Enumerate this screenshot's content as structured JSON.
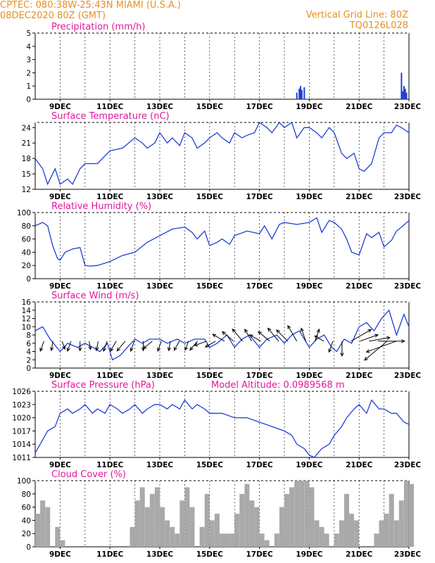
{
  "header": {
    "left_line1": "CPTEC:   080:38W-25:43N   MIAMI (U.S.A.)",
    "left_line2": "08DEC2020 80Z (GMT)",
    "right_line1": "Vertical Grid Line: 80Z",
    "right_line2": "TQ0126L028",
    "model_altitude": "Model Altitude: 0.0989568 m"
  },
  "colors": {
    "header": "#e8901c",
    "title": "#e0179a",
    "line": "#1f3fd6",
    "cloud": "#a9a9a9",
    "wind": "#000000"
  },
  "x_tick_labels": [
    "9DEC",
    "11DEC",
    "13DEC",
    "15DEC",
    "17DEC",
    "19DEC",
    "21DEC",
    "23DEC"
  ],
  "chart_data": [
    {
      "type": "bar",
      "title": "Precipitation (mm/h)",
      "ylim": [
        0,
        5
      ],
      "yticks": [
        0,
        1,
        2,
        3,
        4,
        5
      ],
      "x": [
        18.5,
        18.6,
        18.65,
        18.7,
        18.8,
        22.7,
        22.75,
        22.8,
        22.85,
        22.9
      ],
      "values": [
        0.5,
        0.8,
        1.0,
        0.7,
        0.9,
        2.0,
        0.6,
        1.0,
        0.8,
        0.5
      ]
    },
    {
      "type": "line",
      "title": "Surface Temperature (nC)",
      "ylim": [
        12,
        25
      ],
      "yticks": [
        12,
        15,
        18,
        21,
        24
      ],
      "x": [
        8.0,
        8.3,
        8.5,
        8.8,
        9.0,
        9.3,
        9.5,
        9.8,
        10.0,
        10.5,
        11.0,
        11.5,
        12.0,
        12.3,
        12.5,
        12.8,
        13.0,
        13.3,
        13.5,
        13.8,
        14.0,
        14.3,
        14.5,
        14.8,
        15.0,
        15.3,
        15.5,
        15.8,
        16.0,
        16.3,
        16.5,
        16.8,
        17.0,
        17.3,
        17.5,
        17.8,
        18.0,
        18.3,
        18.5,
        18.8,
        19.0,
        19.3,
        19.5,
        19.8,
        20.0,
        20.3,
        20.5,
        20.8,
        21.0,
        21.2,
        21.5,
        21.8,
        22.0,
        22.3,
        22.5,
        22.7,
        23.0
      ],
      "values": [
        18,
        16,
        13,
        16,
        13,
        14,
        13,
        16,
        17,
        17,
        19.5,
        20,
        22,
        21,
        20,
        21,
        23,
        21,
        22,
        20.5,
        23,
        22,
        20,
        21,
        22,
        23,
        22,
        21,
        23,
        22,
        22.5,
        23,
        25,
        24,
        23,
        25,
        24,
        25,
        22,
        24,
        24,
        23,
        22,
        24,
        23,
        19,
        18,
        19,
        16,
        15.5,
        17,
        22,
        23,
        23,
        24.5,
        24,
        23
      ]
    },
    {
      "type": "line",
      "title": "Relative Humidity (%)",
      "ylim": [
        0,
        100
      ],
      "yticks": [
        0,
        20,
        40,
        60,
        80,
        100
      ],
      "x": [
        8.0,
        8.3,
        8.5,
        8.7,
        8.9,
        9.0,
        9.2,
        9.5,
        9.8,
        10.0,
        10.2,
        10.5,
        11.0,
        11.5,
        12.0,
        12.5,
        13.0,
        13.5,
        14.0,
        14.3,
        14.5,
        14.8,
        15.0,
        15.3,
        15.5,
        15.8,
        16.0,
        16.5,
        17.0,
        17.2,
        17.5,
        17.8,
        18.0,
        18.5,
        19.0,
        19.3,
        19.5,
        19.8,
        20.0,
        20.3,
        20.5,
        20.7,
        21.0,
        21.3,
        21.5,
        21.8,
        22.0,
        22.3,
        22.5,
        22.7,
        23.0
      ],
      "values": [
        80,
        85,
        80,
        50,
        30,
        28,
        40,
        45,
        47,
        20,
        19,
        20,
        26,
        35,
        40,
        55,
        65,
        75,
        78,
        70,
        60,
        72,
        50,
        55,
        60,
        52,
        65,
        72,
        68,
        80,
        60,
        82,
        85,
        82,
        85,
        92,
        70,
        88,
        85,
        75,
        60,
        40,
        36,
        68,
        62,
        70,
        48,
        58,
        72,
        78,
        88
      ]
    },
    {
      "type": "line",
      "title": "Surface Wind (m/s)",
      "ylim": [
        0,
        16
      ],
      "yticks": [
        0,
        2,
        4,
        6,
        8,
        10,
        12,
        14,
        16
      ],
      "x": [
        8.0,
        8.3,
        8.6,
        9.0,
        9.3,
        9.7,
        10.0,
        10.3,
        10.6,
        10.9,
        11.1,
        11.4,
        11.7,
        12.0,
        12.3,
        12.6,
        13.0,
        13.3,
        13.7,
        14.0,
        14.4,
        14.8,
        15.0,
        15.3,
        15.7,
        16.0,
        16.3,
        16.6,
        17.0,
        17.3,
        17.7,
        18.0,
        18.3,
        18.6,
        19.0,
        19.3,
        19.6,
        19.9,
        20.1,
        20.4,
        20.7,
        21.0,
        21.3,
        21.6,
        21.9,
        22.2,
        22.5,
        22.8,
        23.0
      ],
      "values": [
        9,
        10,
        7,
        4,
        6,
        5,
        6,
        5,
        4,
        6,
        2,
        3,
        5,
        7,
        6,
        7,
        7,
        6,
        7,
        6,
        7,
        7,
        5,
        6,
        8,
        5,
        7,
        8,
        5,
        7,
        8,
        6,
        8,
        9,
        5,
        7,
        8,
        5,
        4,
        7,
        6,
        10,
        11,
        9,
        12,
        14,
        8,
        13,
        10
      ],
      "arrows_dir": [
        200,
        190,
        160,
        200,
        180,
        170,
        190,
        200,
        210,
        220,
        200,
        180,
        230,
        200,
        190,
        210,
        200,
        220,
        250,
        240,
        300,
        310,
        320,
        330,
        300,
        310,
        320,
        315,
        330,
        340,
        20,
        300,
        200,
        180,
        60,
        70,
        80,
        90,
        230,
        250
      ],
      "arrows_len": [
        10,
        9,
        8,
        10,
        9,
        8,
        9,
        10,
        11,
        12,
        10,
        9,
        11,
        10,
        9,
        10,
        9,
        11,
        12,
        11,
        13,
        14,
        15,
        13,
        12,
        14,
        16,
        15,
        17,
        13,
        12,
        10,
        11,
        14,
        22,
        18,
        20,
        25,
        28,
        30
      ]
    },
    {
      "type": "line",
      "title": "Surface Pressure (hPa)",
      "ylim": [
        1011,
        1026
      ],
      "yticks": [
        1011,
        1014,
        1017,
        1020,
        1023,
        1026
      ],
      "x": [
        8.0,
        8.3,
        8.5,
        8.8,
        9.0,
        9.3,
        9.5,
        9.8,
        10.0,
        10.3,
        10.5,
        10.8,
        11.0,
        11.3,
        11.5,
        11.8,
        12.0,
        12.3,
        12.5,
        12.8,
        13.0,
        13.3,
        13.5,
        13.8,
        14.0,
        14.3,
        14.5,
        14.8,
        15.0,
        15.5,
        16.0,
        16.5,
        17.0,
        17.5,
        18.0,
        18.3,
        18.5,
        18.8,
        19.0,
        19.2,
        19.5,
        19.8,
        20.0,
        20.3,
        20.5,
        20.8,
        21.0,
        21.3,
        21.5,
        21.8,
        22.0,
        22.3,
        22.5,
        22.8,
        23.0
      ],
      "values": [
        1012,
        1015,
        1017,
        1018,
        1021,
        1022,
        1021,
        1022,
        1023,
        1021,
        1022,
        1021,
        1023,
        1022,
        1021,
        1022,
        1023,
        1021,
        1022,
        1023,
        1023,
        1022,
        1023,
        1022,
        1024,
        1022,
        1023,
        1022,
        1021,
        1021,
        1020,
        1020,
        1019,
        1018,
        1017,
        1016,
        1014,
        1013,
        1011.5,
        1011,
        1013,
        1014,
        1016,
        1018,
        1020,
        1022,
        1023,
        1021,
        1024,
        1022,
        1022,
        1021,
        1021,
        1019,
        1018.5
      ]
    },
    {
      "type": "bar",
      "title": "Cloud Cover (%)",
      "ylim": [
        0,
        100
      ],
      "yticks": [
        0,
        20,
        40,
        60,
        80,
        100
      ],
      "x": [
        8.0,
        8.2,
        8.4,
        8.6,
        8.8,
        9.0,
        9.2,
        9.4,
        9.6,
        9.8,
        10.0,
        10.2,
        10.4,
        10.6,
        10.8,
        11.0,
        11.2,
        11.4,
        11.6,
        11.8,
        12.0,
        12.2,
        12.4,
        12.6,
        12.8,
        13.0,
        13.2,
        13.4,
        13.6,
        13.8,
        14.0,
        14.2,
        14.4,
        14.6,
        14.8,
        15.0,
        15.2,
        15.4,
        15.6,
        15.8,
        16.0,
        16.2,
        16.4,
        16.6,
        16.8,
        17.0,
        17.2,
        17.4,
        17.6,
        17.8,
        18.0,
        18.2,
        18.4,
        18.6,
        18.8,
        19.0,
        19.2,
        19.4,
        19.6,
        19.8,
        20.0,
        20.2,
        20.4,
        20.6,
        20.8,
        21.0,
        21.2,
        21.4,
        21.6,
        21.8,
        22.0,
        22.2,
        22.4,
        22.6,
        22.8,
        23.0
      ],
      "values": [
        50,
        70,
        60,
        0,
        30,
        10,
        0,
        0,
        0,
        0,
        0,
        0,
        0,
        0,
        0,
        0,
        0,
        0,
        0,
        30,
        70,
        90,
        60,
        80,
        90,
        60,
        40,
        30,
        20,
        70,
        90,
        60,
        0,
        30,
        80,
        40,
        50,
        20,
        20,
        20,
        50,
        80,
        95,
        70,
        60,
        20,
        10,
        0,
        20,
        60,
        80,
        90,
        100,
        100,
        100,
        90,
        40,
        30,
        20,
        0,
        20,
        40,
        80,
        50,
        40,
        0,
        0,
        0,
        20,
        40,
        50,
        80,
        40,
        70,
        100,
        95
      ]
    }
  ]
}
